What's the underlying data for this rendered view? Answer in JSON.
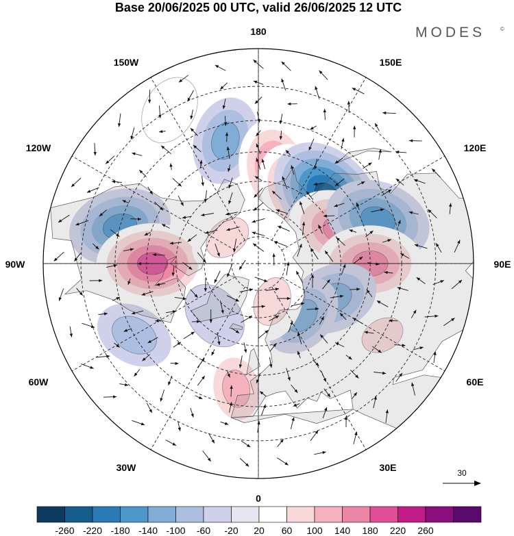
{
  "title": "Base 20/06/2025 00 UTC, valid 26/06/2025 12 UTC",
  "brand": {
    "name": "MODES",
    "mark": "©"
  },
  "map": {
    "projection": "north-polar-stereographic",
    "longitude_labels": {
      "top": "180",
      "bottom": "0",
      "left": "90W",
      "right": "90E",
      "upper_left_1": "150W",
      "upper_left_2": "120W",
      "lower_left_1": "60W",
      "lower_left_2": "30W",
      "upper_right_1": "150E",
      "upper_right_2": "120E",
      "lower_right_1": "60E",
      "lower_right_2": "30E"
    },
    "vector_reference": "30",
    "anomaly_centers": [
      {
        "lon": -165,
        "lat": 45,
        "value": -110
      },
      {
        "lon": -105,
        "lat": 40,
        "value": -160
      },
      {
        "lon": -90,
        "lat": 52,
        "value": 190
      },
      {
        "lon": 170,
        "lat": 55,
        "value": 150
      },
      {
        "lon": 150,
        "lat": 60,
        "value": 160
      },
      {
        "lon": 135,
        "lat": 55,
        "value": -220
      },
      {
        "lon": 112,
        "lat": 58,
        "value": 170
      },
      {
        "lon": 110,
        "lat": 45,
        "value": -170
      },
      {
        "lon": 90,
        "lat": 50,
        "value": 170
      },
      {
        "lon": 65,
        "lat": 60,
        "value": -120
      },
      {
        "lon": 40,
        "lat": 65,
        "value": -100
      },
      {
        "lon": -10,
        "lat": 45,
        "value": 110
      },
      {
        "lon": -60,
        "lat": 40,
        "value": -80
      },
      {
        "lon": -130,
        "lat": 75,
        "value": 80
      },
      {
        "lon": 20,
        "lat": 75,
        "value": 90
      },
      {
        "lon": 60,
        "lat": 40,
        "value": 60
      },
      {
        "lon": -150,
        "lat": 30,
        "value": 50
      },
      {
        "lon": -40,
        "lat": 65,
        "value": -50
      }
    ]
  },
  "colorbar": {
    "labels": [
      "-260",
      "-220",
      "-180",
      "-140",
      "-100",
      "-60",
      "-20",
      "20",
      "60",
      "100",
      "140",
      "180",
      "220",
      "260"
    ],
    "colors": [
      "#0e3a5e",
      "#175d8c",
      "#2b7ab8",
      "#4e97cb",
      "#7fadd6",
      "#adbfe1",
      "#cfd1ea",
      "#e8e4f1",
      "#ffffff",
      "#f9d8d9",
      "#f5b1bd",
      "#ee86a8",
      "#e04e97",
      "#c11b85",
      "#8c0f7d",
      "#5a0a6b"
    ]
  }
}
